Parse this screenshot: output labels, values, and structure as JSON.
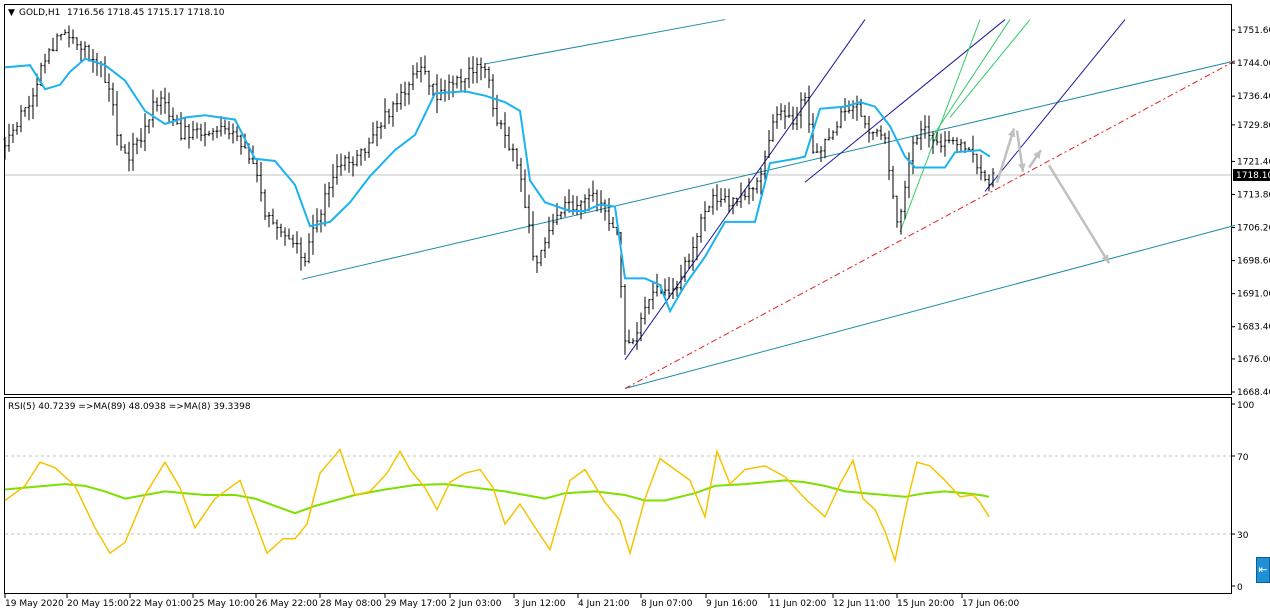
{
  "header": {
    "symbol": "GOLD,H1",
    "ohlc": "1716.56 1718.45 1715.17 1718.10"
  },
  "price_axis": {
    "ticks": [
      "1751.60",
      "1744.00",
      "1736.40",
      "1729.80",
      "1721.40",
      "1713.80",
      "1706.20",
      "1698.60",
      "1691.00",
      "1683.40",
      "1676.00",
      "1668.40"
    ],
    "current_price": "1718.10"
  },
  "rsi_panel": {
    "label": "RSI(5) 40.7239  =>MA(89) 48.0938  =>MA(8) 39.3398",
    "ticks": [
      "100",
      "70",
      "30",
      "0"
    ]
  },
  "time_axis": {
    "ticks": [
      "19 May 2020",
      "20 May 15:00",
      "22 May 01:00",
      "25 May 10:00",
      "26 May 22:00",
      "28 May 08:00",
      "29 May 17:00",
      "2 Jun 03:00",
      "3 Jun 12:00",
      "4 Jun 21:00",
      "8 Jun 07:00",
      "9 Jun 16:00",
      "11 Jun 02:00",
      "12 Jun 11:00",
      "15 Jun 20:00",
      "17 Jun 06:00"
    ]
  },
  "colors": {
    "candles": "#000000",
    "price_ma": "#1ab2f0",
    "rsi": "#f5c400",
    "rsi_ma": "#7de000",
    "channel": "#1a8aa8",
    "pitchfork": "#1a1a9c",
    "fan": "#33cc66",
    "trendline": "#e02020",
    "arrows": "#c0c0c0",
    "scroll_button": "#1e90d6"
  },
  "scroll_button_icon": "scroll-to-end-icon",
  "chart_data": {
    "type": "candlestick",
    "symbol": "GOLD",
    "timeframe": "H1",
    "ylim": [
      1668.4,
      1754
    ],
    "price_series": [
      [
        0,
        1726.5
      ],
      [
        20,
        1733.0
      ],
      [
        45,
        1747.0
      ],
      [
        60,
        1752.0
      ],
      [
        75,
        1748.5
      ],
      [
        95,
        1743.0
      ],
      [
        105,
        1737.5
      ],
      [
        115,
        1725.0
      ],
      [
        125,
        1723.0
      ],
      [
        135,
        1726.5
      ],
      [
        150,
        1736.0
      ],
      [
        165,
        1732.5
      ],
      [
        175,
        1727.5
      ],
      [
        190,
        1729.0
      ],
      [
        205,
        1726.5
      ],
      [
        220,
        1728.5
      ],
      [
        235,
        1726.0
      ],
      [
        250,
        1720.0
      ],
      [
        260,
        1708.5
      ],
      [
        275,
        1705.5
      ],
      [
        290,
        1703.0
      ],
      [
        297,
        1697.0
      ],
      [
        305,
        1703.5
      ],
      [
        320,
        1713.0
      ],
      [
        335,
        1721.0
      ],
      [
        350,
        1721.5
      ],
      [
        365,
        1725.0
      ],
      [
        380,
        1731.5
      ],
      [
        395,
        1736.5
      ],
      [
        410,
        1741.0
      ],
      [
        420,
        1742.5
      ],
      [
        430,
        1736.5
      ],
      [
        445,
        1739.0
      ],
      [
        460,
        1741.0
      ],
      [
        475,
        1743.0
      ],
      [
        482,
        1741.5
      ],
      [
        490,
        1731.0
      ],
      [
        500,
        1727.0
      ],
      [
        515,
        1719.0
      ],
      [
        520,
        1711.0
      ],
      [
        530,
        1698.5
      ],
      [
        545,
        1705.5
      ],
      [
        560,
        1710.5
      ],
      [
        575,
        1712.0
      ],
      [
        585,
        1714.5
      ],
      [
        600,
        1709.5
      ],
      [
        612,
        1704.0
      ],
      [
        620,
        1681.5
      ],
      [
        630,
        1678.5
      ],
      [
        640,
        1688.5
      ],
      [
        650,
        1692.0
      ],
      [
        665,
        1690.5
      ],
      [
        680,
        1697.0
      ],
      [
        695,
        1706.5
      ],
      [
        710,
        1713.0
      ],
      [
        725,
        1712.0
      ],
      [
        740,
        1712.5
      ],
      [
        755,
        1718.5
      ],
      [
        765,
        1728.5
      ],
      [
        775,
        1734.0
      ],
      [
        790,
        1731.0
      ],
      [
        800,
        1737.5
      ],
      [
        808,
        1723.5
      ],
      [
        820,
        1725.0
      ],
      [
        835,
        1731.5
      ],
      [
        850,
        1734.5
      ],
      [
        865,
        1728.0
      ],
      [
        880,
        1727.5
      ],
      [
        886,
        1717.0
      ],
      [
        893,
        1706.5
      ],
      [
        905,
        1723.0
      ],
      [
        920,
        1729.0
      ],
      [
        930,
        1725.5
      ],
      [
        940,
        1726.0
      ],
      [
        955,
        1724.5
      ],
      [
        970,
        1722.0
      ],
      [
        982,
        1715.5
      ],
      [
        988,
        1718.1
      ]
    ],
    "price_ma_series": [
      [
        0,
        1743.0
      ],
      [
        25,
        1743.5
      ],
      [
        40,
        1738.0
      ],
      [
        55,
        1739.0
      ],
      [
        65,
        1742.0
      ],
      [
        80,
        1745.0
      ],
      [
        100,
        1743.5
      ],
      [
        120,
        1740.0
      ],
      [
        140,
        1733.0
      ],
      [
        160,
        1730.0
      ],
      [
        180,
        1731.5
      ],
      [
        200,
        1732.0
      ],
      [
        230,
        1731.0
      ],
      [
        250,
        1722.0
      ],
      [
        270,
        1721.5
      ],
      [
        290,
        1716.0
      ],
      [
        305,
        1706.5
      ],
      [
        325,
        1707.5
      ],
      [
        345,
        1712.0
      ],
      [
        365,
        1718.0
      ],
      [
        390,
        1724.0
      ],
      [
        410,
        1727.5
      ],
      [
        430,
        1737.0
      ],
      [
        460,
        1737.5
      ],
      [
        480,
        1736.5
      ],
      [
        500,
        1735.0
      ],
      [
        515,
        1733.0
      ],
      [
        525,
        1717.0
      ],
      [
        540,
        1712.0
      ],
      [
        565,
        1710.0
      ],
      [
        580,
        1710.0
      ],
      [
        595,
        1711.5
      ],
      [
        610,
        1711.0
      ],
      [
        620,
        1694.5
      ],
      [
        640,
        1694.5
      ],
      [
        655,
        1693.0
      ],
      [
        665,
        1687.0
      ],
      [
        680,
        1693.0
      ],
      [
        700,
        1699.5
      ],
      [
        720,
        1707.5
      ],
      [
        750,
        1707.5
      ],
      [
        765,
        1721.0
      ],
      [
        790,
        1722.0
      ],
      [
        800,
        1722.5
      ],
      [
        815,
        1733.5
      ],
      [
        840,
        1734.0
      ],
      [
        855,
        1735.0
      ],
      [
        870,
        1734.0
      ],
      [
        885,
        1729.5
      ],
      [
        900,
        1722.5
      ],
      [
        910,
        1720.0
      ],
      [
        940,
        1720.0
      ],
      [
        950,
        1723.5
      ],
      [
        975,
        1724.0
      ],
      [
        985,
        1722.5
      ]
    ],
    "rsi_ylim": [
      0,
      100
    ],
    "rsi_levels": [
      70,
      30
    ],
    "rsi_series": [
      [
        0,
        47
      ],
      [
        20,
        55
      ],
      [
        35,
        68
      ],
      [
        50,
        65
      ],
      [
        70,
        55
      ],
      [
        90,
        32
      ],
      [
        105,
        18
      ],
      [
        120,
        24
      ],
      [
        140,
        50
      ],
      [
        160,
        68
      ],
      [
        175,
        54
      ],
      [
        190,
        32
      ],
      [
        210,
        48
      ],
      [
        235,
        58
      ],
      [
        250,
        36
      ],
      [
        262,
        18
      ],
      [
        278,
        26
      ],
      [
        290,
        26
      ],
      [
        302,
        34
      ],
      [
        315,
        62
      ],
      [
        335,
        75
      ],
      [
        350,
        50
      ],
      [
        365,
        52
      ],
      [
        382,
        62
      ],
      [
        395,
        74
      ],
      [
        405,
        64
      ],
      [
        420,
        54
      ],
      [
        432,
        42
      ],
      [
        445,
        57
      ],
      [
        460,
        62
      ],
      [
        475,
        64
      ],
      [
        488,
        54
      ],
      [
        500,
        34
      ],
      [
        515,
        45
      ],
      [
        535,
        28
      ],
      [
        545,
        20
      ],
      [
        565,
        58
      ],
      [
        580,
        64
      ],
      [
        600,
        46
      ],
      [
        615,
        36
      ],
      [
        625,
        18
      ],
      [
        640,
        48
      ],
      [
        655,
        70
      ],
      [
        670,
        64
      ],
      [
        685,
        58
      ],
      [
        700,
        38
      ],
      [
        712,
        74
      ],
      [
        725,
        56
      ],
      [
        740,
        64
      ],
      [
        760,
        66
      ],
      [
        780,
        60
      ],
      [
        800,
        48
      ],
      [
        820,
        38
      ],
      [
        835,
        56
      ],
      [
        848,
        69
      ],
      [
        858,
        48
      ],
      [
        870,
        42
      ],
      [
        880,
        30
      ],
      [
        890,
        14
      ],
      [
        902,
        46
      ],
      [
        912,
        68
      ],
      [
        925,
        66
      ],
      [
        940,
        58
      ],
      [
        955,
        49
      ],
      [
        968,
        50
      ],
      [
        975,
        46
      ],
      [
        984,
        38
      ]
    ],
    "rsi_ma_series": [
      [
        0,
        53
      ],
      [
        30,
        54.5
      ],
      [
        60,
        56
      ],
      [
        80,
        55
      ],
      [
        100,
        52
      ],
      [
        120,
        48
      ],
      [
        140,
        50
      ],
      [
        160,
        52
      ],
      [
        180,
        51
      ],
      [
        200,
        50
      ],
      [
        230,
        50
      ],
      [
        250,
        48
      ],
      [
        270,
        44
      ],
      [
        290,
        40
      ],
      [
        310,
        44
      ],
      [
        330,
        47
      ],
      [
        350,
        50
      ],
      [
        380,
        53
      ],
      [
        410,
        55.5
      ],
      [
        440,
        56
      ],
      [
        470,
        54
      ],
      [
        500,
        52
      ],
      [
        520,
        50
      ],
      [
        540,
        48
      ],
      [
        560,
        51
      ],
      [
        590,
        52
      ],
      [
        620,
        50
      ],
      [
        640,
        47
      ],
      [
        660,
        47
      ],
      [
        690,
        51
      ],
      [
        710,
        55
      ],
      [
        740,
        56
      ],
      [
        760,
        57
      ],
      [
        780,
        58
      ],
      [
        800,
        57
      ],
      [
        820,
        55
      ],
      [
        840,
        52
      ],
      [
        860,
        51
      ],
      [
        880,
        50
      ],
      [
        900,
        49
      ],
      [
        920,
        51
      ],
      [
        940,
        52
      ],
      [
        960,
        51
      ],
      [
        975,
        50
      ],
      [
        984,
        49
      ]
    ],
    "drawings": {
      "channel_upper": [
        [
          480,
          1743.8
        ],
        [
          720,
          1754.0
        ]
      ],
      "channel_middle": [
        [
          297,
          1694.3
        ],
        [
          1230,
          1744.5
        ]
      ],
      "channel_lower": [
        [
          620,
          1669.2
        ],
        [
          1230,
          1706.7
        ]
      ],
      "pitchfork_lines": [
        [
          [
            620,
            1675.8
          ],
          [
            860,
            1754.0
          ]
        ],
        [
          [
            800,
            1716.6
          ],
          [
            1000,
            1754.0
          ]
        ],
        [
          [
            980,
            1714.5
          ],
          [
            1120,
            1754.0
          ]
        ]
      ],
      "fan_lines": [
        [
          [
            895,
            1705.2
          ],
          [
            975,
            1754.0
          ]
        ],
        [
          [
            925,
            1726.2
          ],
          [
            1005,
            1754.0
          ]
        ],
        [
          [
            945,
            1731.5
          ],
          [
            1025,
            1754.0
          ]
        ]
      ],
      "dashed_trend": [
        [
          620,
          1669.2
        ],
        [
          1230,
          1744.5
        ]
      ],
      "forecast_arrows": [
        [
          [
            992,
            1716.5
          ],
          [
            1009,
            1729.0
          ]
        ],
        [
          [
            1012,
            1728.5
          ],
          [
            1018,
            1719.0
          ]
        ],
        [
          [
            1024,
            1720.0
          ],
          [
            1036,
            1724.0
          ]
        ],
        [
          [
            1044,
            1720.5
          ],
          [
            1104,
            1698.0
          ]
        ]
      ]
    }
  }
}
